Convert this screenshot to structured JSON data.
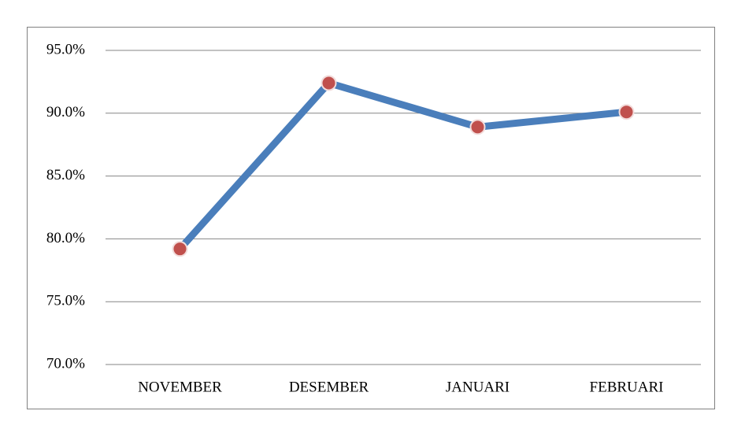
{
  "chart_data": {
    "type": "line",
    "categories": [
      "NOVEMBER",
      "DESEMBER",
      "JANUARI",
      "FEBRUARI"
    ],
    "values": [
      79.2,
      92.4,
      88.9,
      90.1
    ],
    "color": "#4a7ebb",
    "marker_color": "#c0504d",
    "ylim": [
      70,
      95
    ],
    "yticks": [
      {
        "value": 70,
        "label": "70.0%"
      },
      {
        "value": 75,
        "label": "75.0%"
      },
      {
        "value": 80,
        "label": "80.0%"
      },
      {
        "value": 85,
        "label": "85.0%"
      },
      {
        "value": 90,
        "label": "90.0%"
      },
      {
        "value": 95,
        "label": "95.0%"
      }
    ],
    "grid": true
  }
}
